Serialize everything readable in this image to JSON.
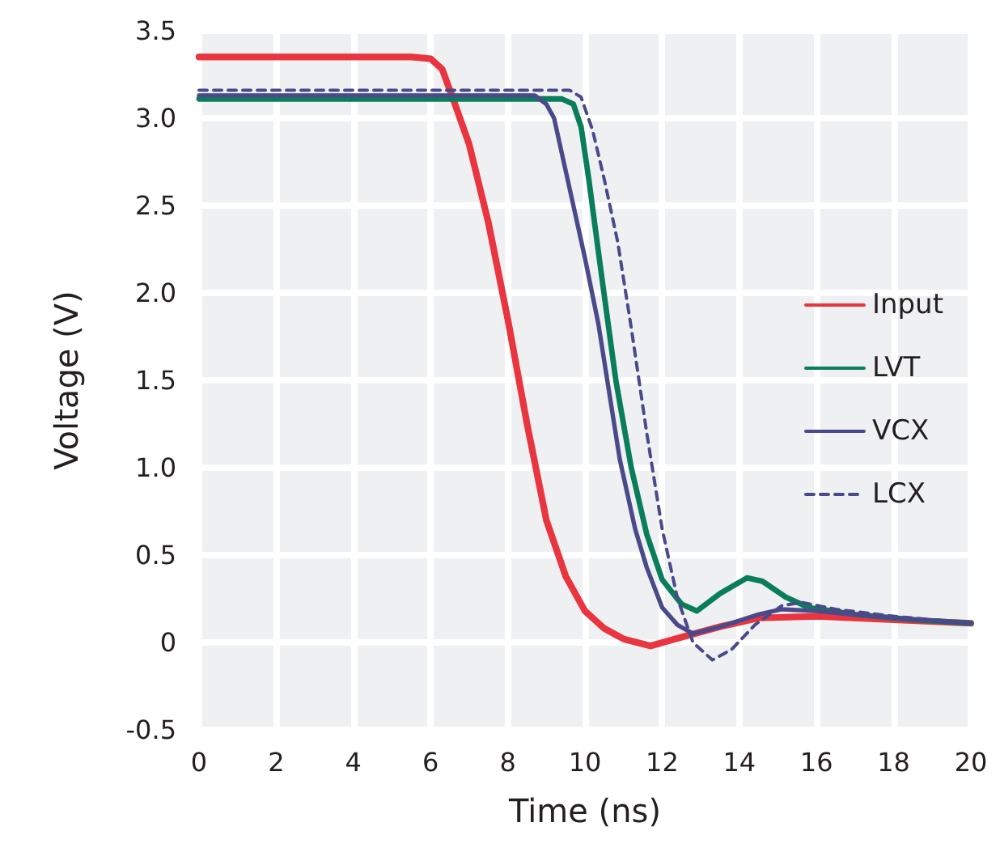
{
  "chart_data": {
    "type": "line",
    "xlabel": "Time (ns)",
    "ylabel": "Voltage (V)",
    "xlim": [
      0,
      20
    ],
    "xticks": [
      0,
      2,
      4,
      6,
      8,
      10,
      12,
      14,
      16,
      18,
      20
    ],
    "ylim": [
      -0.5,
      3.5
    ],
    "yticks": [
      -0.5,
      0,
      0.5,
      {
        "value": 1,
        "label": "1.0"
      },
      1.5,
      {
        "value": 2,
        "label": "2.0"
      },
      2.5,
      {
        "value": 3,
        "label": "3.0"
      },
      3.5
    ],
    "grid": true,
    "legend": "right",
    "marker": "none",
    "series": [
      {
        "name": "Input",
        "color": "#e8353f",
        "line_style": "solid",
        "x": [
          0,
          5.5,
          6,
          6.3,
          6.6,
          7,
          7.5,
          8,
          8.5,
          9,
          9.5,
          10,
          10.5,
          11,
          11.7,
          12.5,
          13.5,
          14.5,
          16,
          18,
          20
        ],
        "values": [
          3.35,
          3.35,
          3.34,
          3.28,
          3.1,
          2.85,
          2.4,
          1.85,
          1.25,
          0.7,
          0.38,
          0.18,
          0.08,
          0.02,
          -0.02,
          0.03,
          0.09,
          0.14,
          0.15,
          0.13,
          0.11
        ]
      },
      {
        "name": "LVT",
        "color": "#0a7d5a",
        "line_style": "solid",
        "x": [
          0,
          9.4,
          9.7,
          9.9,
          10.1,
          10.4,
          10.8,
          11.2,
          11.6,
          12,
          12.5,
          12.9,
          13.5,
          14.2,
          14.6,
          15.2,
          15.8,
          17,
          18.5,
          20
        ],
        "values": [
          3.11,
          3.11,
          3.08,
          2.95,
          2.65,
          2.15,
          1.5,
          1.0,
          0.62,
          0.36,
          0.22,
          0.18,
          0.28,
          0.37,
          0.35,
          0.26,
          0.2,
          0.16,
          0.13,
          0.11
        ]
      },
      {
        "name": "VCX",
        "color": "#4a4a8a",
        "line_style": "solid",
        "x": [
          0,
          8.7,
          9.0,
          9.2,
          9.5,
          10.0,
          10.35,
          10.9,
          11.3,
          11.6,
          12,
          12.4,
          12.8,
          13.5,
          14.5,
          15.1,
          16,
          18,
          20
        ],
        "values": [
          3.13,
          3.13,
          3.08,
          3.0,
          2.7,
          2.2,
          1.82,
          1.05,
          0.65,
          0.43,
          0.2,
          0.1,
          0.05,
          0.09,
          0.16,
          0.19,
          0.18,
          0.14,
          0.11
        ]
      },
      {
        "name": "LCX",
        "color": "#4a4a8a",
        "line_style": "dashed",
        "x": [
          0,
          9.6,
          9.9,
          10.2,
          10.5,
          10.85,
          11.2,
          11.6,
          12,
          12.4,
          12.8,
          13.3,
          13.8,
          14.4,
          15.1,
          15.6,
          16.5,
          18,
          20
        ],
        "values": [
          3.16,
          3.16,
          3.12,
          2.93,
          2.65,
          2.29,
          1.8,
          1.2,
          0.65,
          0.25,
          0.0,
          -0.1,
          -0.04,
          0.1,
          0.21,
          0.23,
          0.19,
          0.15,
          0.11
        ]
      }
    ]
  }
}
